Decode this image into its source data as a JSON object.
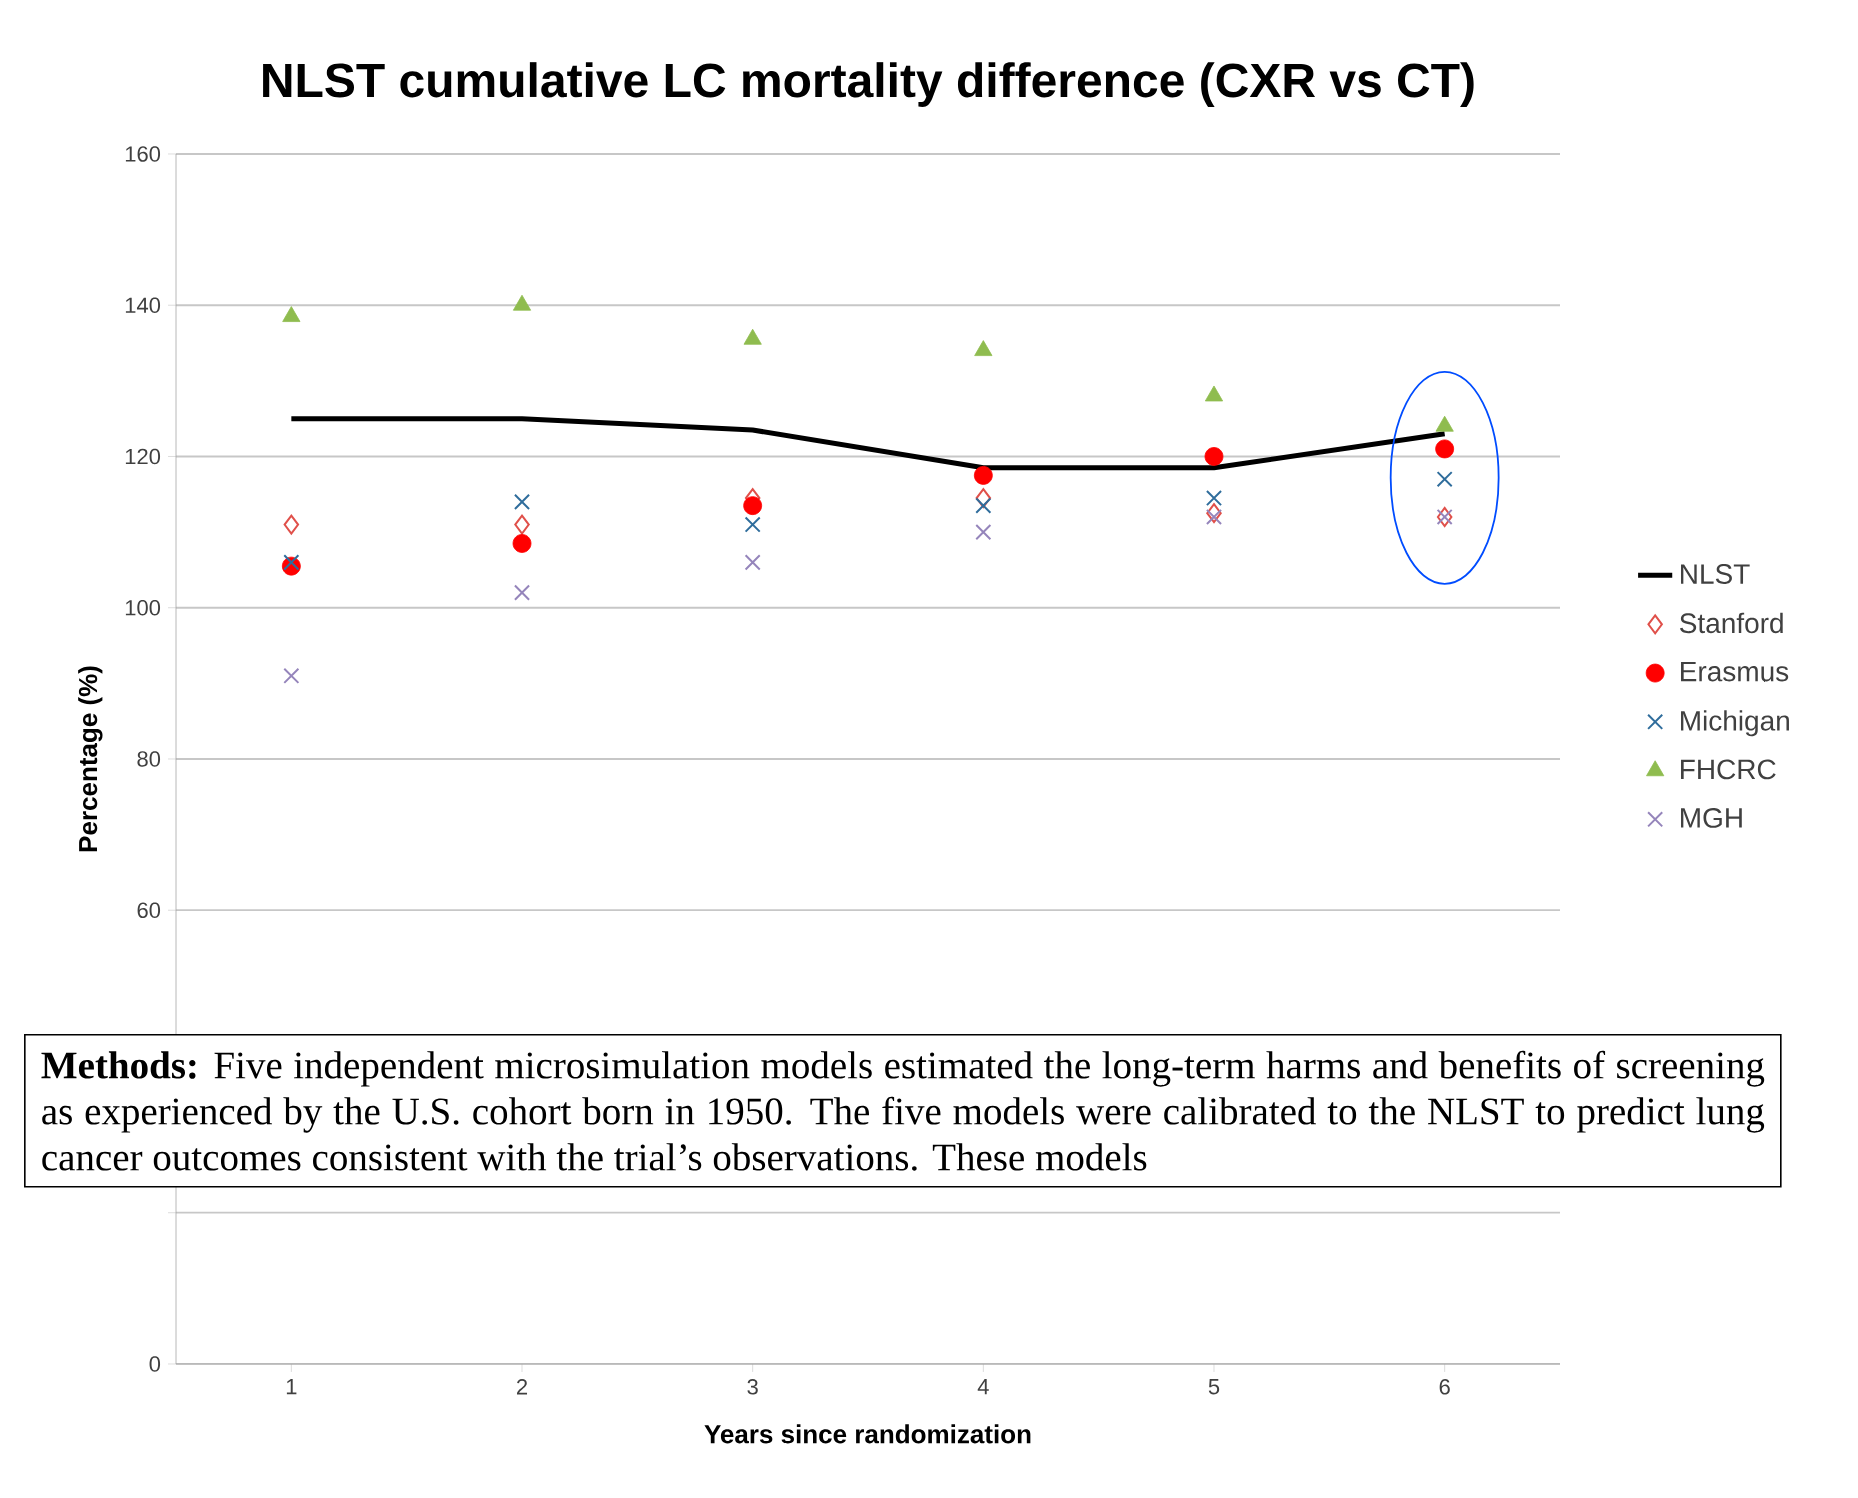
{
  "chart_data": {
    "type": "scatter",
    "title": "NLST cumulative LC mortality difference (CXR vs CT)",
    "xlabel": "Years since randomization",
    "ylabel": "Percentage (%)",
    "categories": [
      "1",
      "2",
      "3",
      "4",
      "5",
      "6"
    ],
    "series": [
      {
        "name": "NLST",
        "type": "line",
        "color": "#000000",
        "marker": "none",
        "line_style": "solid",
        "values": [
          125,
          125,
          123.5,
          118.5,
          118.5,
          123
        ]
      },
      {
        "name": "Stanford",
        "color": "#e0504a",
        "marker": "diamond",
        "values": [
          111,
          111,
          114.5,
          114.5,
          112.5,
          112
        ]
      },
      {
        "name": "Erasmus",
        "color": "#ff0000",
        "marker": "circle",
        "values": [
          105.5,
          108.5,
          113.5,
          117.5,
          120,
          121
        ]
      },
      {
        "name": "Michigan",
        "color": "#2f6d9c",
        "marker": "cross",
        "values": [
          106,
          114,
          111,
          113.5,
          114.5,
          117
        ]
      },
      {
        "name": "FHCRC",
        "color": "#8fbc4f",
        "marker": "triangle",
        "values": [
          138.5,
          140,
          135.5,
          134,
          128,
          124
        ]
      },
      {
        "name": "MGH",
        "color": "#9585bb",
        "marker": "cross",
        "values": [
          91,
          102,
          106,
          110,
          112,
          112
        ]
      }
    ],
    "ylim": [
      0,
      160
    ],
    "yticks": [
      0,
      {
        "value": 20,
        "label": null
      },
      {
        "value": 40,
        "label": null
      },
      60,
      80,
      100,
      120,
      140,
      160
    ],
    "grid": "y",
    "legend": "right",
    "annotations": [
      "**Methods:** Five independent microsimulation models estimated the long-term harms and benefits of screening as experienced by the U.S. cohort born in 1950.",
      "The five models were calibrated to the NLST to predict lung cancer outcomes consistent with the trial’s observations.",
      "These models"
    ]
  }
}
